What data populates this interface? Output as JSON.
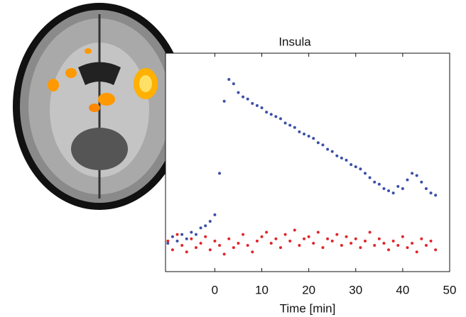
{
  "chart_data": {
    "type": "scatter",
    "title": "Insula",
    "x_label": "Time [min]",
    "x": [
      -10,
      -9,
      -8,
      -7,
      -6,
      -5,
      -4,
      -3,
      -2,
      -1,
      0,
      1,
      2,
      3,
      4,
      5,
      6,
      7,
      8,
      9,
      10,
      11,
      12,
      13,
      14,
      15,
      16,
      17,
      18,
      19,
      20,
      21,
      22,
      23,
      24,
      25,
      26,
      27,
      28,
      29,
      30,
      31,
      32,
      33,
      34,
      35,
      36,
      37,
      38,
      39,
      40,
      41,
      42,
      43,
      44,
      45,
      46,
      47
    ],
    "series": [
      {
        "color": "#3b4fa6",
        "values": [
          13,
          16,
          14,
          17,
          15,
          18,
          17,
          20,
          21,
          23,
          26,
          45,
          78,
          88,
          86,
          82,
          80,
          79,
          77,
          76,
          75,
          73,
          72,
          71,
          70,
          68,
          67,
          66,
          64,
          63,
          62,
          61,
          59,
          58,
          56,
          55,
          53,
          52,
          51,
          49,
          48,
          47,
          45,
          43,
          41,
          40,
          38,
          37,
          36,
          39,
          38,
          42,
          45,
          44,
          41,
          38,
          36,
          35
        ]
      },
      {
        "color": "#e0262b",
        "values": [
          14,
          10,
          17,
          12,
          9,
          15,
          11,
          13,
          16,
          10,
          14,
          12,
          8,
          15,
          11,
          13,
          17,
          12,
          9,
          14,
          16,
          18,
          13,
          15,
          11,
          17,
          14,
          19,
          12,
          15,
          16,
          13,
          18,
          11,
          15,
          14,
          17,
          12,
          16,
          13,
          15,
          11,
          14,
          18,
          12,
          15,
          13,
          10,
          14,
          12,
          16,
          11,
          13,
          9,
          15,
          12,
          14,
          10
        ]
      }
    ],
    "xlim": [
      -10.5,
      50
    ],
    "ylim": [
      0,
      100
    ],
    "xticks": [
      0,
      10,
      20,
      30,
      40,
      50
    ]
  }
}
